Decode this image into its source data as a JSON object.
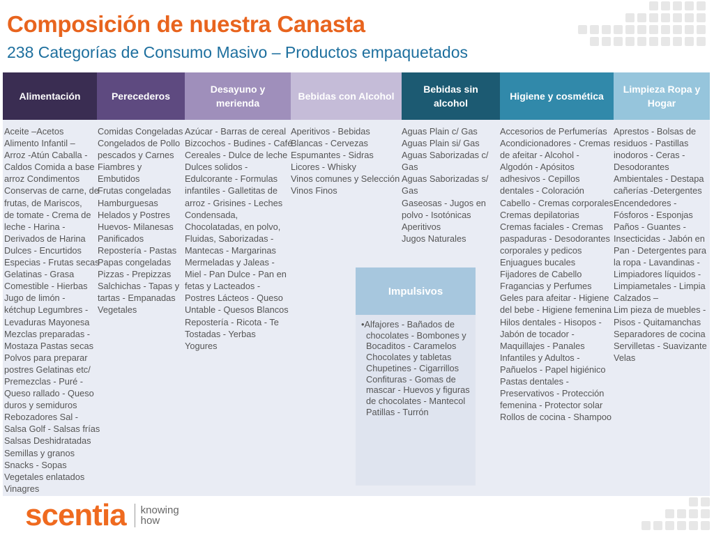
{
  "title": "Composición de nuestra Canasta",
  "subtitle": "238 Categorías de Consumo Masivo – Productos empaquetados",
  "colors": {
    "title": "#e8641e",
    "subtitle": "#1d6f9e",
    "header_alimentacion": "#3a2d52",
    "header_perecederos": "#5e4a80",
    "header_desayuno": "#9f8fbb",
    "header_bebidas_alcohol": "#c5bcd8",
    "header_bebidas_sin_alcohol": "#1c5a72",
    "header_higiene": "#3189aa",
    "header_limpieza": "#96c5dc",
    "table_background": "#e9ecf4",
    "impulsivos_header": "#a7c7de",
    "logo": "#ef6a1f"
  },
  "columns": [
    {
      "header": [
        "Alimentación"
      ],
      "items": [
        "Aceite –Acetos",
        "Alimento Infantil –",
        "Arroz -Atún Caballa -",
        "Caldos  Comida a base",
        "arroz  Condimentos",
        "Conservas de carne, de",
        "frutas, de Mariscos,",
        "de tomate - Crema de",
        "leche - Harina -",
        "Derivados de Harina",
        "Dulces - Encurtidos",
        "Especias - Frutas secas",
        "Gelatinas - Grasa",
        "Comestible - Hierbas",
        "Jugo de limón -",
        "kétchup Legumbres -",
        "Levaduras Mayonesa",
        "Mezclas preparadas -",
        "Mostaza  Pastas secas",
        "Polvos para preparar",
        "postres Gelatinas etc/",
        "Premezclas - Puré  -",
        "Queso rallado - Queso",
        "duros y semiduros",
        "Rebozadores  Sal -",
        "Salsa Golf - Salsas frías",
        "Salsas Deshidratadas",
        "Semillas y granos",
        "Snacks - Sopas",
        "Vegetales enlatados",
        "Vinagres"
      ]
    },
    {
      "header": [
        "Perecederos"
      ],
      "items": [
        "Comidas Congeladas",
        "Congelados de Pollo",
        "pescados y Carnes",
        "Fiambres y",
        "Embutidos",
        "Frutas congeladas",
        "Hamburguesas",
        "Helados y Postres",
        "Huevos- Milanesas",
        "Panificados",
        "Repostería - Pastas",
        "Papas congeladas",
        "Pizzas - Prepizzas",
        "Salchichas - Tapas y",
        "tartas - Empanadas",
        "Vegetales"
      ]
    },
    {
      "header": [
        "Desayuno y",
        "merienda"
      ],
      "items": [
        "Azúcar - Barras de cereal",
        "Bizcochos - Budines - Café",
        "Cereales - Dulce de leche",
        "Dulces solidos -",
        "Edulcorante - Formulas",
        "infantiles - Galletitas de",
        "arroz - Grisines - Leches",
        "Condensada,",
        "Chocolatadas, en polvo,",
        "Fluidas, Saborizadas -",
        "Mantecas - Margarinas",
        "Mermeladas y Jaleas -",
        "Miel - Pan Dulce - Pan en",
        "fetas y Lacteados -",
        "Postres Lácteos - Queso",
        "Untable - Quesos Blancos",
        "Repostería - Ricota - Te",
        "Tostadas - Yerbas",
        "Yogures"
      ]
    },
    {
      "header": [
        "Bebidas con Alcohol"
      ],
      "items": [
        "Aperitivos - Bebidas",
        "Blancas - Cervezas",
        "Espumantes - Sidras",
        "Licores - Whisky",
        "Vinos comunes y Selección",
        "Vinos Finos"
      ]
    },
    {
      "header": [
        "Bebidas  sin",
        "alcohol"
      ],
      "items": [
        "Aguas Plain c/ Gas",
        "Aguas Plain si/ Gas",
        "Aguas Saborizadas c/",
        "Gas",
        "Aguas Saborizadas s/",
        "Gas",
        "Gaseosas  - Jugos en",
        "polvo - Isotónicas",
        "Aperitivos",
        "Jugos Naturales"
      ]
    },
    {
      "header": [
        "Higiene y cosmética"
      ],
      "items": [
        "Accesorios de Perfumerías",
        "Acondicionadores - Cremas",
        "de afeitar - Alcohol -",
        "Algodón - Apósitos",
        "adhesivos -  Cepillos",
        "dentales - Coloración",
        "Cabello - Cremas corporales",
        "Cremas depilatorias",
        "Cremas faciales - Cremas",
        "paspaduras - Desodorantes",
        "corporales y pedicos",
        "Enjuagues bucales",
        "Fijadores de Cabello",
        "Fragancias y Perfumes",
        "Geles para afeitar - Higiene",
        "del bebe - Higiene femenina",
        "Hilos dentales - Hisopos -",
        "Jabón de tocador -",
        "Maquillajes - Panales",
        "Infantiles y Adultos -",
        "Pañuelos - Papel higiénico",
        "Pastas dentales -",
        "Preservativos - Protección",
        "femenina - Protector solar",
        "Rollos de cocina - Shampoo"
      ]
    },
    {
      "header": [
        "Limpieza Ropa y",
        "Hogar"
      ],
      "items": [
        "Aprestos - Bolsas de",
        "residuos - Pastillas",
        "inodoros - Ceras -",
        "Desodorantes",
        "Ambientales - Destapa",
        "cañerías -Detergentes",
        "Encendedores -",
        "Fósforos - Esponjas",
        "Paños - Guantes -",
        "Insecticidas - Jabón en",
        "Pan - Detergentes para",
        "la ropa - Lavandinas -",
        "Limpiadores líquidos -",
        "Limpiametales - Limpia",
        "Calzados –",
        " Lim pieza de muebles -",
        "Pisos - Quitamanchas",
        "Separadores de cocina",
        "Servilletas - Suavizante",
        "Velas"
      ]
    }
  ],
  "impulsivos": {
    "header": "Impulsivos",
    "bullet": "•",
    "items": [
      "Alfajores  -  Bañados de",
      "chocolates - Bombones y",
      "Bocaditos - Caramelos",
      "Chocolates y tabletas",
      "Chupetines - Cigarrillos",
      "Confituras - Gomas de",
      "mascar - Huevos y figuras",
      "de chocolates - Mantecol",
      "Patillas - Turrón"
    ]
  },
  "logo": {
    "word": "scentia",
    "tagline": [
      "knowing",
      "how"
    ]
  }
}
